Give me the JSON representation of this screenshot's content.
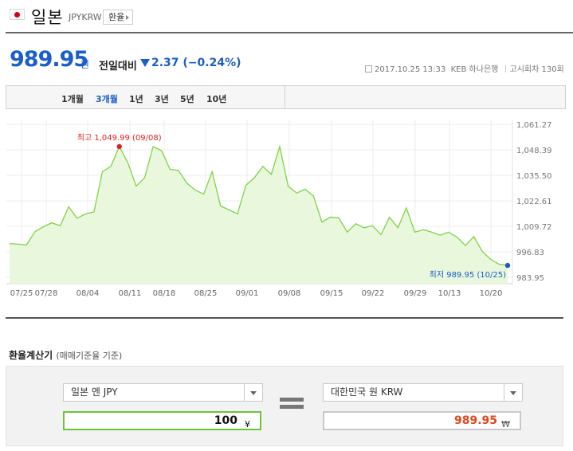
{
  "header": {
    "title": "일본",
    "code": "JPYKRW",
    "fx_button": "환율"
  },
  "price": {
    "value": "989.95",
    "unit": "원",
    "compare_label": "전일대비",
    "change": "2.37",
    "change_pct": "(−0.24%)",
    "direction": "down",
    "timestamp": "2017.10.25 13:33",
    "source": "KEB 하나은행",
    "round": "고시회차 130회"
  },
  "tabs": [
    {
      "label": "1개월",
      "active": false
    },
    {
      "label": "3개월",
      "active": true
    },
    {
      "label": "1년",
      "active": false
    },
    {
      "label": "3년",
      "active": false
    },
    {
      "label": "5년",
      "active": false
    },
    {
      "label": "10년",
      "active": false
    }
  ],
  "chart_data": {
    "type": "area",
    "y_ticks": [
      "1,061.27",
      "1,048.39",
      "1,035.50",
      "1,022.61",
      "1,009.72",
      "996.83",
      "983.95"
    ],
    "ylim": [
      983.95,
      1061.27
    ],
    "x_ticks": [
      "07/25",
      "07/28",
      "08/04",
      "08/11",
      "08/18",
      "08/25",
      "09/01",
      "09/08",
      "09/15",
      "09/22",
      "09/29",
      "10/13",
      "10/20"
    ],
    "values": [
      1001.0,
      1000.7,
      1000.3,
      1007.0,
      1009.5,
      1011.5,
      1010.0,
      1019.6,
      1013.8,
      1016.0,
      1017.0,
      1037.3,
      1040.0,
      1050.0,
      1042.0,
      1030.0,
      1034.3,
      1050.0,
      1048.0,
      1038.5,
      1038.0,
      1031.5,
      1028.0,
      1026.0,
      1037.3,
      1020.0,
      1018.0,
      1016.0,
      1030.5,
      1034.3,
      1040.0,
      1036.0,
      1049.99,
      1030.0,
      1026.5,
      1028.5,
      1025.0,
      1011.8,
      1014.3,
      1014.0,
      1006.8,
      1011.0,
      1009.0,
      1010.0,
      1005.5,
      1014.3,
      1009.0,
      1019.0,
      1006.8,
      1008.0,
      1006.8,
      1005.2,
      1006.8,
      1004.3,
      1000.0,
      1004.5,
      997.0,
      993.0,
      990.5,
      989.95
    ],
    "max_label": "최고 1,049.99 (09/08)",
    "min_label": "최저  989.95 (10/25)",
    "fill_color": "#e9f7dd",
    "line_color": "#7cd543",
    "max_color": "#e02020",
    "min_color": "#1a5ec8"
  },
  "calculator": {
    "title": "환율계산기",
    "subtitle": "(매매기준율 기준)",
    "from_currency": "일본 엔 JPY",
    "to_currency": "대한민국 원 KRW",
    "from_amount": "100",
    "from_symbol": "¥",
    "to_amount": "989.95",
    "to_symbol": "₩"
  }
}
